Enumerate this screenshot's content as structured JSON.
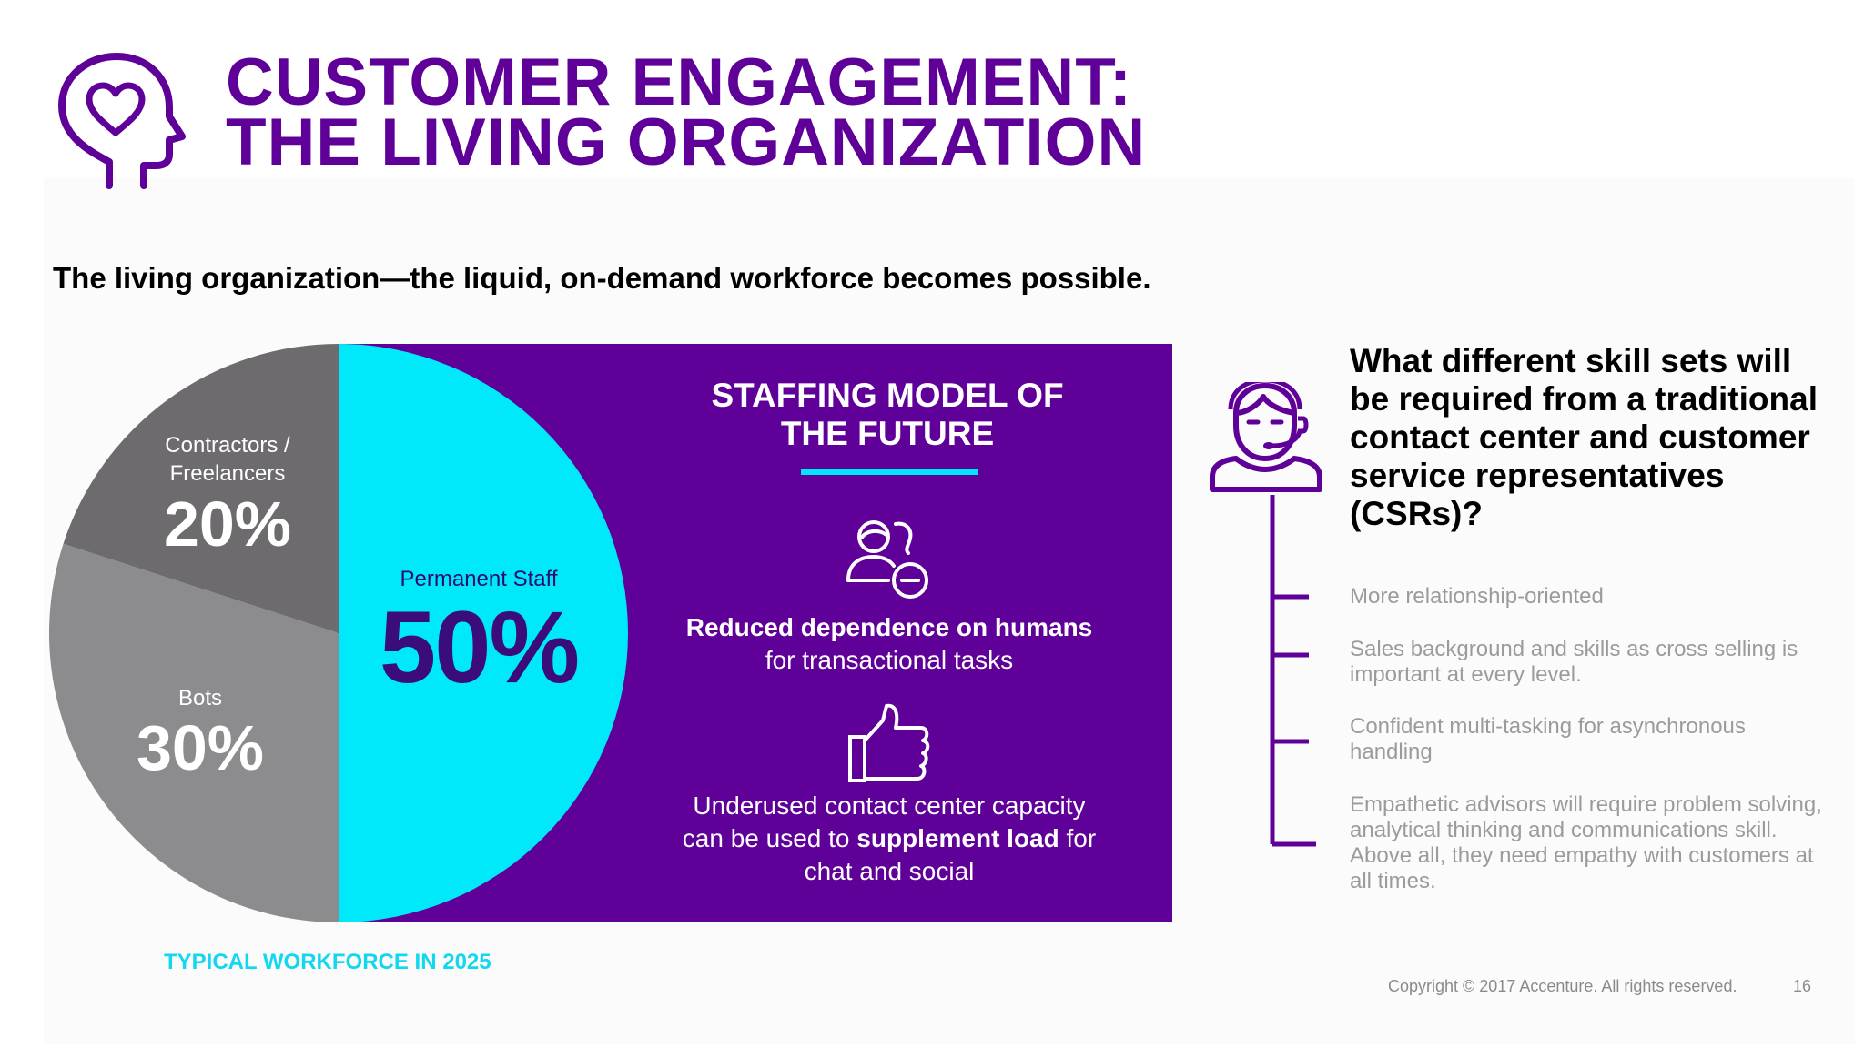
{
  "header": {
    "title_line1": "CUSTOMER ENGAGEMENT:",
    "title_line2": "THE LIVING ORGANIZATION",
    "icon": "head-heart-icon"
  },
  "subtitle": "The living organization—the liquid, on-demand workforce becomes possible.",
  "chart_data": {
    "type": "pie",
    "title": "",
    "caption": "TYPICAL WORKFORCE IN 2025",
    "slices": [
      {
        "label": "Permanent Staff",
        "value": 50,
        "value_label": "50%",
        "color": "#00e9fb"
      },
      {
        "label": "Bots",
        "value": 30,
        "value_label": "30%",
        "color": "#8c8b8e"
      },
      {
        "label": "Contractors / Freelancers",
        "label_lines": [
          "Contractors /",
          "Freelancers"
        ],
        "value": 20,
        "value_label": "20%",
        "color": "#6d6b6e"
      }
    ]
  },
  "panel": {
    "background": "#5f0199",
    "title_line1": "STAFFING MODEL OF",
    "title_line2": "THE FUTURE",
    "item1": {
      "icon": "people-minus-icon",
      "bold": "Reduced dependence on humans",
      "text": "for transactional tasks"
    },
    "item2": {
      "icon": "thumbs-up-icon",
      "line1": "Underused contact center capacity",
      "line2_pre": "can be used to ",
      "line2_bold": "supplement load",
      "line2_post": " for",
      "line3": "chat and social"
    }
  },
  "csr": {
    "icon": "headset-agent-icon",
    "question": "What different skill sets will be required from a traditional contact center and customer service representatives (CSRs)?",
    "skills": [
      "More relationship-oriented",
      "Sales background and skills as cross selling is important at every level.",
      "Confident multi-tasking for asynchronous handling",
      "Empathetic advisors will require problem solving, analytical thinking and communications skill. Above all, they need empathy with customers at all times."
    ]
  },
  "footer": {
    "copyright": "Copyright © 2017 Accenture. All rights reserved.",
    "page": "16"
  },
  "colors": {
    "purple": "#5f0199",
    "cyan": "#00e9fb",
    "gray_dark": "#6d6b6e",
    "gray_light": "#8c8b8e"
  }
}
